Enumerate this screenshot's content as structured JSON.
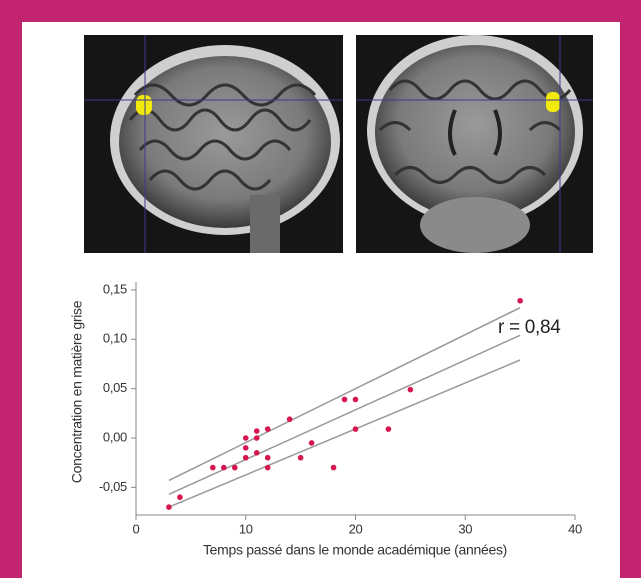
{
  "chart_data": {
    "type": "scatter",
    "x": [
      3,
      4,
      7,
      8,
      9,
      10,
      10,
      10,
      11,
      11,
      11,
      12,
      12,
      12,
      14,
      15,
      16,
      18,
      19,
      20,
      20,
      23,
      25,
      35
    ],
    "values": [
      -0.07,
      -0.06,
      -0.03,
      -0.03,
      -0.03,
      0.0,
      -0.01,
      -0.02,
      0.007,
      0.0,
      -0.015,
      0.009,
      -0.02,
      -0.03,
      0.019,
      -0.02,
      -0.005,
      -0.03,
      0.039,
      0.039,
      0.009,
      0.009,
      0.049,
      0.139
    ],
    "color": "#d7164f",
    "lines": [
      {
        "x": [
          3,
          35
        ],
        "values": [
          -0.043,
          0.132
        ],
        "color": "#999999"
      },
      {
        "x": [
          3,
          35
        ],
        "values": [
          -0.057,
          0.104
        ],
        "color": "#999999"
      },
      {
        "x": [
          3,
          35
        ],
        "values": [
          -0.07,
          0.079
        ],
        "color": "#999999"
      }
    ],
    "xlim": [
      0,
      40
    ],
    "ylim": [
      -0.078,
      0.158
    ],
    "xticks": [
      0,
      10,
      20,
      30,
      40
    ],
    "yticks": [
      {
        "value": -0.05,
        "label": "-0,05"
      },
      {
        "value": 0.0,
        "label": "0,00"
      },
      {
        "value": 0.05,
        "label": "0,05"
      },
      {
        "value": 0.1,
        "label": "0,10"
      },
      {
        "value": 0.15,
        "label": "0,15"
      }
    ],
    "xlabel": "Temps passé dans le monde académique (années)",
    "ylabel": "Concentration en matière grise",
    "annotation": "r = 0,84"
  }
}
